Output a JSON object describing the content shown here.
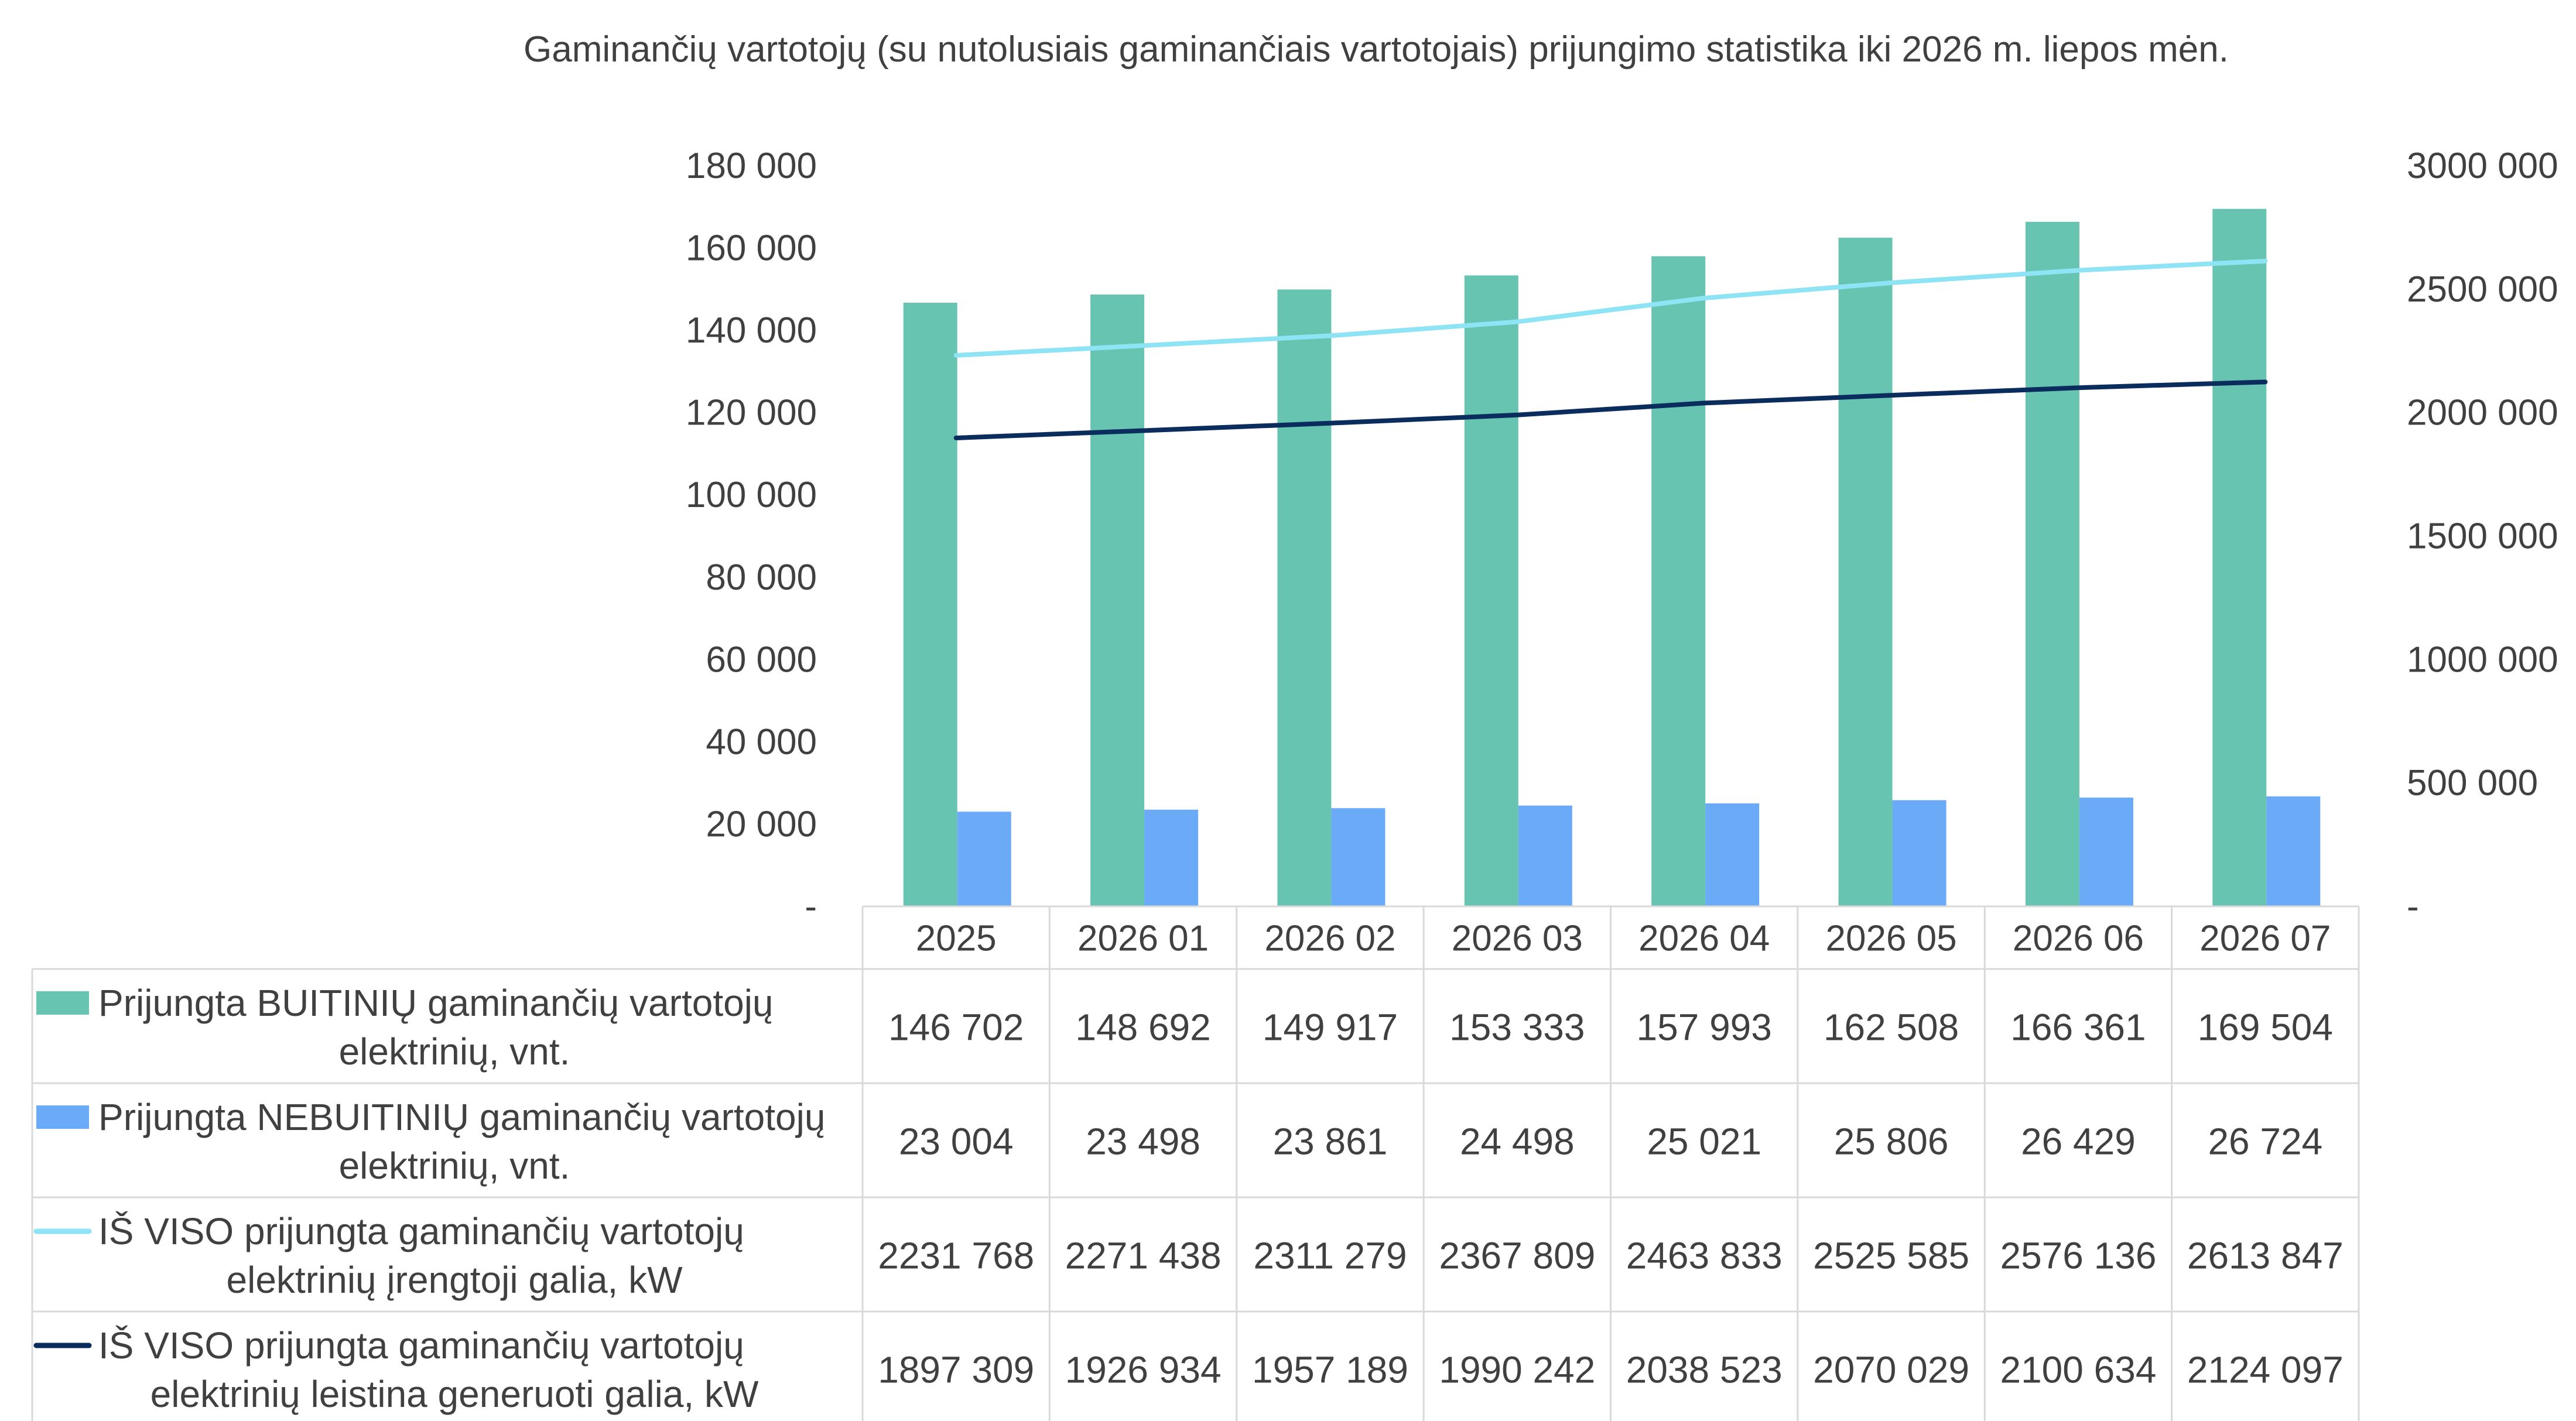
{
  "chart_data": {
    "type": "bar",
    "title": "Gaminančių vartotojų (su nutolusiais gaminančiais vartotojais) prijungimo statistika iki 2026 m. liepos mėn.",
    "categories": [
      "2025",
      "2026 01",
      "2026 02",
      "2026 03",
      "2026 04",
      "2026 05",
      "2026 06",
      "2026 07"
    ],
    "y_left": {
      "min": 0,
      "max": 180000,
      "ticks": [
        0,
        20000,
        40000,
        60000,
        80000,
        100000,
        120000,
        140000,
        160000,
        180000
      ],
      "tick_labels": [
        "-",
        "20 000",
        "40 000",
        "60 000",
        "80 000",
        "100 000",
        "120 000",
        "140 000",
        "160 000",
        "180 000"
      ]
    },
    "y_right": {
      "min": 0,
      "max": 3000000,
      "ticks": [
        0,
        500000,
        1000000,
        1500000,
        2000000,
        2500000,
        3000000
      ],
      "tick_labels": [
        "-",
        "500 000",
        "1000 000",
        "1500 000",
        "2000 000",
        "2500 000",
        "3000 000"
      ]
    },
    "series": [
      {
        "name": "Prijungta BUITINIŲ gaminančių vartotojų elektrinių, vnt.",
        "legend_lines": [
          "Prijungta BUITINIŲ gaminančių vartotojų",
          "elektrinių, vnt."
        ],
        "kind": "bar",
        "axis": "left",
        "color": "#66C4B1",
        "values": [
          146702,
          148692,
          149917,
          153333,
          157993,
          162508,
          166361,
          169504
        ],
        "labels": [
          "146 702",
          "148 692",
          "149 917",
          "153 333",
          "157 993",
          "162 508",
          "166 361",
          "169 504"
        ]
      },
      {
        "name": "Prijungta NEBUITINIŲ gaminančių vartotojų elektrinių, vnt.",
        "legend_lines": [
          "Prijungta NEBUITINIŲ gaminančių vartotojų",
          "elektrinių, vnt."
        ],
        "kind": "bar",
        "axis": "left",
        "color": "#6AAAF7",
        "values": [
          23004,
          23498,
          23861,
          24498,
          25021,
          25806,
          26429,
          26724
        ],
        "labels": [
          "23 004",
          "23 498",
          "23 861",
          "24 498",
          "25 021",
          "25 806",
          "26 429",
          "26 724"
        ]
      },
      {
        "name": "IŠ VISO prijungta gaminančių vartotojų elektrinių įrengtoji galia, kW",
        "legend_lines": [
          "IŠ VISO prijungta gaminančių vartotojų",
          "elektrinių įrengtoji galia, kW"
        ],
        "kind": "line",
        "axis": "right",
        "color": "#8EE3F5",
        "values": [
          2231768,
          2271438,
          2311279,
          2367809,
          2463833,
          2525585,
          2576136,
          2613847
        ],
        "labels": [
          "2231 768",
          "2271 438",
          "2311 279",
          "2367 809",
          "2463 833",
          "2525 585",
          "2576 136",
          "2613 847"
        ]
      },
      {
        "name": "IŠ VISO prijungta gaminančių vartotojų elektrinių leistina generuoti galia, kW",
        "legend_lines": [
          "IŠ VISO prijungta gaminančių vartotojų",
          "elektrinių leistina generuoti galia, kW"
        ],
        "kind": "line",
        "axis": "right",
        "color": "#0B2D5E",
        "values": [
          1897309,
          1926934,
          1957189,
          1990242,
          2038523,
          2070029,
          2100634,
          2124097
        ],
        "labels": [
          "1897 309",
          "1926 934",
          "1957 189",
          "1990 242",
          "2038 523",
          "2070 029",
          "2100 634",
          "2124 097"
        ]
      }
    ],
    "legend": "data-table",
    "grid": false
  }
}
